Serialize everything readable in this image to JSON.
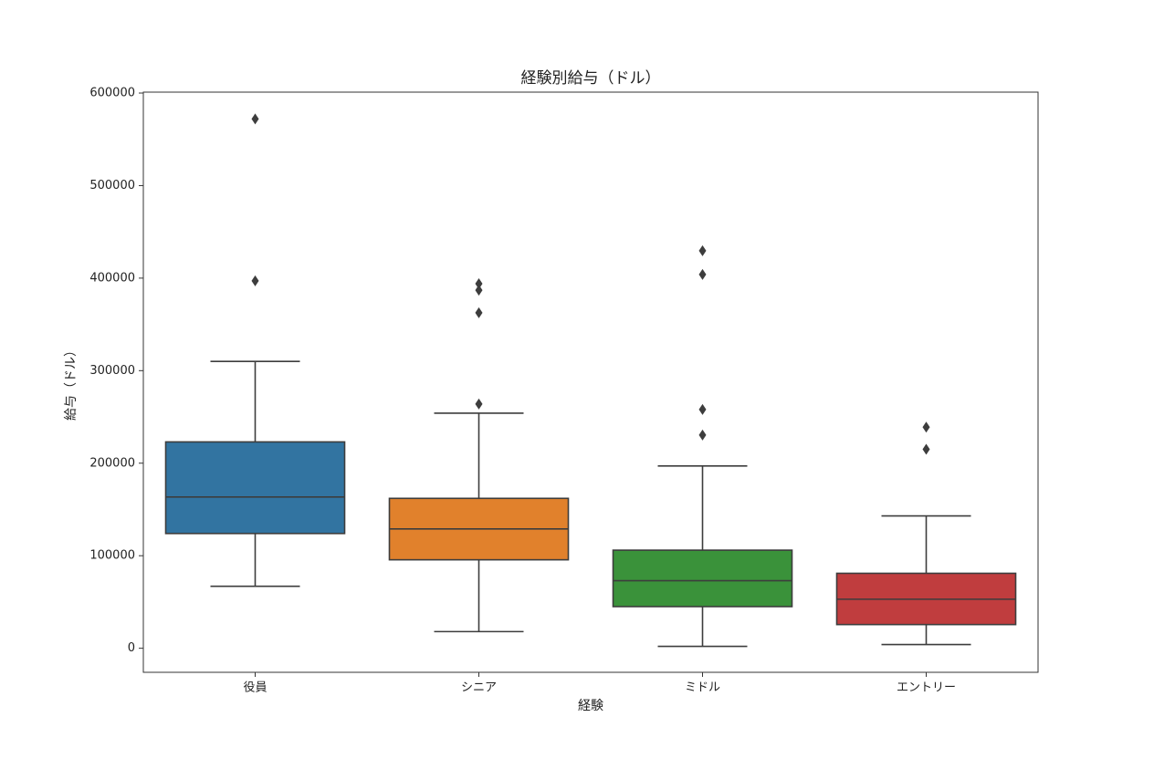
{
  "chart_data": {
    "type": "box",
    "title": "経験別給与（ドル）",
    "x_label": "経験",
    "y_label": "給与（ドル）",
    "categories": [
      "役員",
      "シニア",
      "ミドル",
      "エントリー"
    ],
    "boxes": [
      {
        "color": "#3274a1",
        "whisker_low": 67000,
        "q1": 124000,
        "median": 163500,
        "q3": 223000,
        "whisker_high": 310000,
        "outliers": [
          397000,
          572000
        ]
      },
      {
        "color": "#e1812c",
        "whisker_low": 18000,
        "q1": 95600,
        "median": 129000,
        "q3": 162000,
        "whisker_high": 254000,
        "outliers": [
          264000,
          362600,
          387000,
          394000
        ]
      },
      {
        "color": "#3a923a",
        "whisker_low": 2000,
        "q1": 45000,
        "median": 73000,
        "q3": 106000,
        "whisker_high": 197000,
        "outliers": [
          230500,
          258000,
          404000,
          429600
        ]
      },
      {
        "color": "#c03d3e",
        "whisker_low": 4000,
        "q1": 25600,
        "median": 53000,
        "q3": 81000,
        "whisker_high": 143000,
        "outliers": [
          215000,
          239000
        ]
      }
    ],
    "line_color": "#3d3d3d",
    "ylim": [
      -26000,
      601000
    ],
    "yticks": [
      0,
      100000,
      200000,
      300000,
      400000,
      500000,
      600000
    ]
  }
}
